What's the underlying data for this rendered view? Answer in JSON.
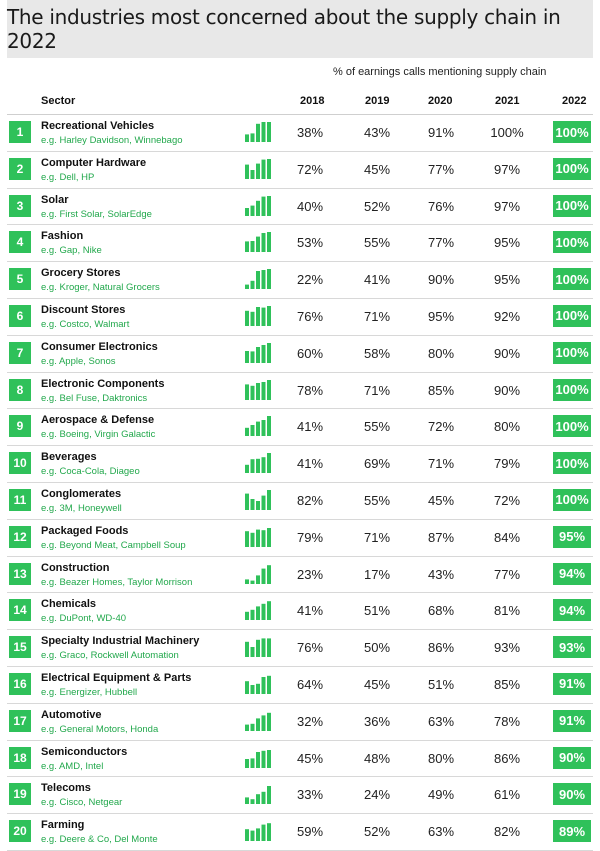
{
  "title": "The industries most concerned about the supply chain in 2022",
  "subtitle": "% of earnings calls mentioning supply chain",
  "headers": {
    "sector": "Sector",
    "y2018": "2018",
    "y2019": "2019",
    "y2020": "2020",
    "y2021": "2021",
    "y2022": "2022"
  },
  "colors": {
    "accent": "#2fc15a",
    "example_text": "#22a84c",
    "title_bg": "#e8e8e8"
  },
  "chart_data": {
    "type": "table",
    "title": "The industries most concerned about the supply chain in 2022",
    "subtitle": "% of earnings calls mentioning supply chain",
    "columns": [
      "2018",
      "2019",
      "2020",
      "2021",
      "2022"
    ],
    "rows": [
      {
        "rank": "1",
        "sector": "Recreational Vehicles",
        "example": "e.g. Harley Davidson, Winnebago",
        "values": [
          38,
          43,
          91,
          100,
          100
        ]
      },
      {
        "rank": "2",
        "sector": "Computer Hardware",
        "example": "e.g. Dell, HP",
        "values": [
          72,
          45,
          77,
          97,
          100
        ]
      },
      {
        "rank": "3",
        "sector": "Solar",
        "example": "e.g. First Solar, SolarEdge",
        "values": [
          40,
          52,
          76,
          97,
          100
        ]
      },
      {
        "rank": "4",
        "sector": "Fashion",
        "example": "e.g. Gap, Nike",
        "values": [
          53,
          55,
          77,
          95,
          100
        ]
      },
      {
        "rank": "5",
        "sector": "Grocery Stores",
        "example": "e.g. Kroger, Natural Grocers",
        "values": [
          22,
          41,
          90,
          95,
          100
        ]
      },
      {
        "rank": "6",
        "sector": "Discount Stores",
        "example": "e.g. Costco, Walmart",
        "values": [
          76,
          71,
          95,
          92,
          100
        ]
      },
      {
        "rank": "7",
        "sector": "Consumer Electronics",
        "example": "e.g. Apple, Sonos",
        "values": [
          60,
          58,
          80,
          90,
          100
        ]
      },
      {
        "rank": "8",
        "sector": "Electronic Components",
        "example": "e.g. Bel Fuse, Daktronics",
        "values": [
          78,
          71,
          85,
          90,
          100
        ]
      },
      {
        "rank": "9",
        "sector": "Aerospace & Defense",
        "example": "e.g. Boeing, Virgin Galactic",
        "values": [
          41,
          55,
          72,
          80,
          100
        ]
      },
      {
        "rank": "10",
        "sector": "Beverages",
        "example": "e.g. Coca-Cola, Diageo",
        "values": [
          41,
          69,
          71,
          79,
          100
        ]
      },
      {
        "rank": "11",
        "sector": "Conglomerates",
        "example": "e.g. 3M, Honeywell",
        "values": [
          82,
          55,
          45,
          72,
          100
        ]
      },
      {
        "rank": "12",
        "sector": "Packaged Foods",
        "example": "e.g. Beyond Meat, Campbell Soup",
        "values": [
          79,
          71,
          87,
          84,
          95
        ]
      },
      {
        "rank": "13",
        "sector": "Construction",
        "example": "e.g. Beazer Homes, Taylor Morrison",
        "values": [
          23,
          17,
          43,
          77,
          94
        ]
      },
      {
        "rank": "14",
        "sector": "Chemicals",
        "example": "e.g. DuPont, WD-40",
        "values": [
          41,
          51,
          68,
          81,
          94
        ]
      },
      {
        "rank": "15",
        "sector": "Specialty Industrial Machinery",
        "example": "e.g. Graco, Rockwell Automation",
        "values": [
          76,
          50,
          86,
          93,
          93
        ]
      },
      {
        "rank": "16",
        "sector": "Electrical Equipment & Parts",
        "example": "e.g. Energizer, Hubbell",
        "values": [
          64,
          45,
          51,
          85,
          91
        ]
      },
      {
        "rank": "17",
        "sector": "Automotive",
        "example": "e.g. General Motors, Honda",
        "values": [
          32,
          36,
          63,
          78,
          91
        ]
      },
      {
        "rank": "18",
        "sector": "Semiconductors",
        "example": "e.g. AMD, Intel",
        "values": [
          45,
          48,
          80,
          86,
          90
        ]
      },
      {
        "rank": "19",
        "sector": "Telecoms",
        "example": "e.g. Cisco, Netgear",
        "values": [
          33,
          24,
          49,
          61,
          90
        ]
      },
      {
        "rank": "20",
        "sector": "Farming",
        "example": "e.g. Deere & Co, Del Monte",
        "values": [
          59,
          52,
          63,
          82,
          89
        ]
      }
    ]
  }
}
